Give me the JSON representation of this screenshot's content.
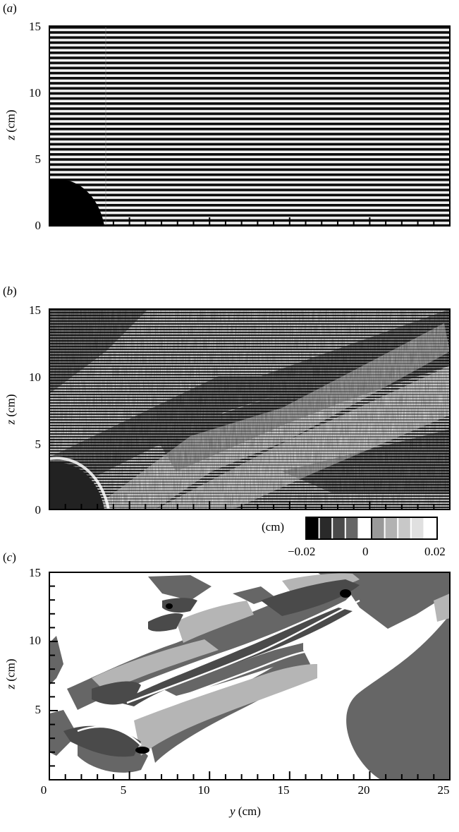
{
  "panels": [
    {
      "tag_open": "(",
      "letter": "a",
      "tag_close": ")",
      "ylabel_var": "z",
      "ylabel_unit": " (cm)",
      "yticks": [
        "15",
        "10",
        "5",
        "0"
      ]
    },
    {
      "tag_open": "(",
      "letter": "b",
      "tag_close": ")",
      "ylabel_var": "z",
      "ylabel_unit": " (cm)",
      "yticks": [
        "15",
        "10",
        "5",
        "0"
      ]
    },
    {
      "tag_open": "(",
      "letter": "c",
      "tag_close": ")",
      "ylabel_var": "z",
      "ylabel_unit": " (cm)",
      "yticks": [
        "15",
        "10",
        "5"
      ]
    }
  ],
  "xaxis": {
    "var": "y",
    "unit": " (cm)",
    "ticks": [
      "0",
      "5",
      "10",
      "15",
      "20",
      "25"
    ],
    "range": [
      0,
      25
    ]
  },
  "yaxis": {
    "range": [
      0,
      15
    ]
  },
  "colorbar": {
    "unit": "(cm)",
    "ticks": [
      "−0.02",
      "0",
      "0.02"
    ],
    "range": [
      -0.02,
      0.02
    ],
    "levels": [
      "#000000",
      "#2a2a2a",
      "#4a4a4a",
      "#666666",
      "#ffffff",
      "#999999",
      "#b2b2b2",
      "#c8c8c8",
      "#e0e0e0",
      "#ffffff"
    ]
  },
  "colors": {
    "dark": "#4a4a4a",
    "mid": "#666666",
    "light": "#b5b5b5",
    "black": "#000000"
  }
}
